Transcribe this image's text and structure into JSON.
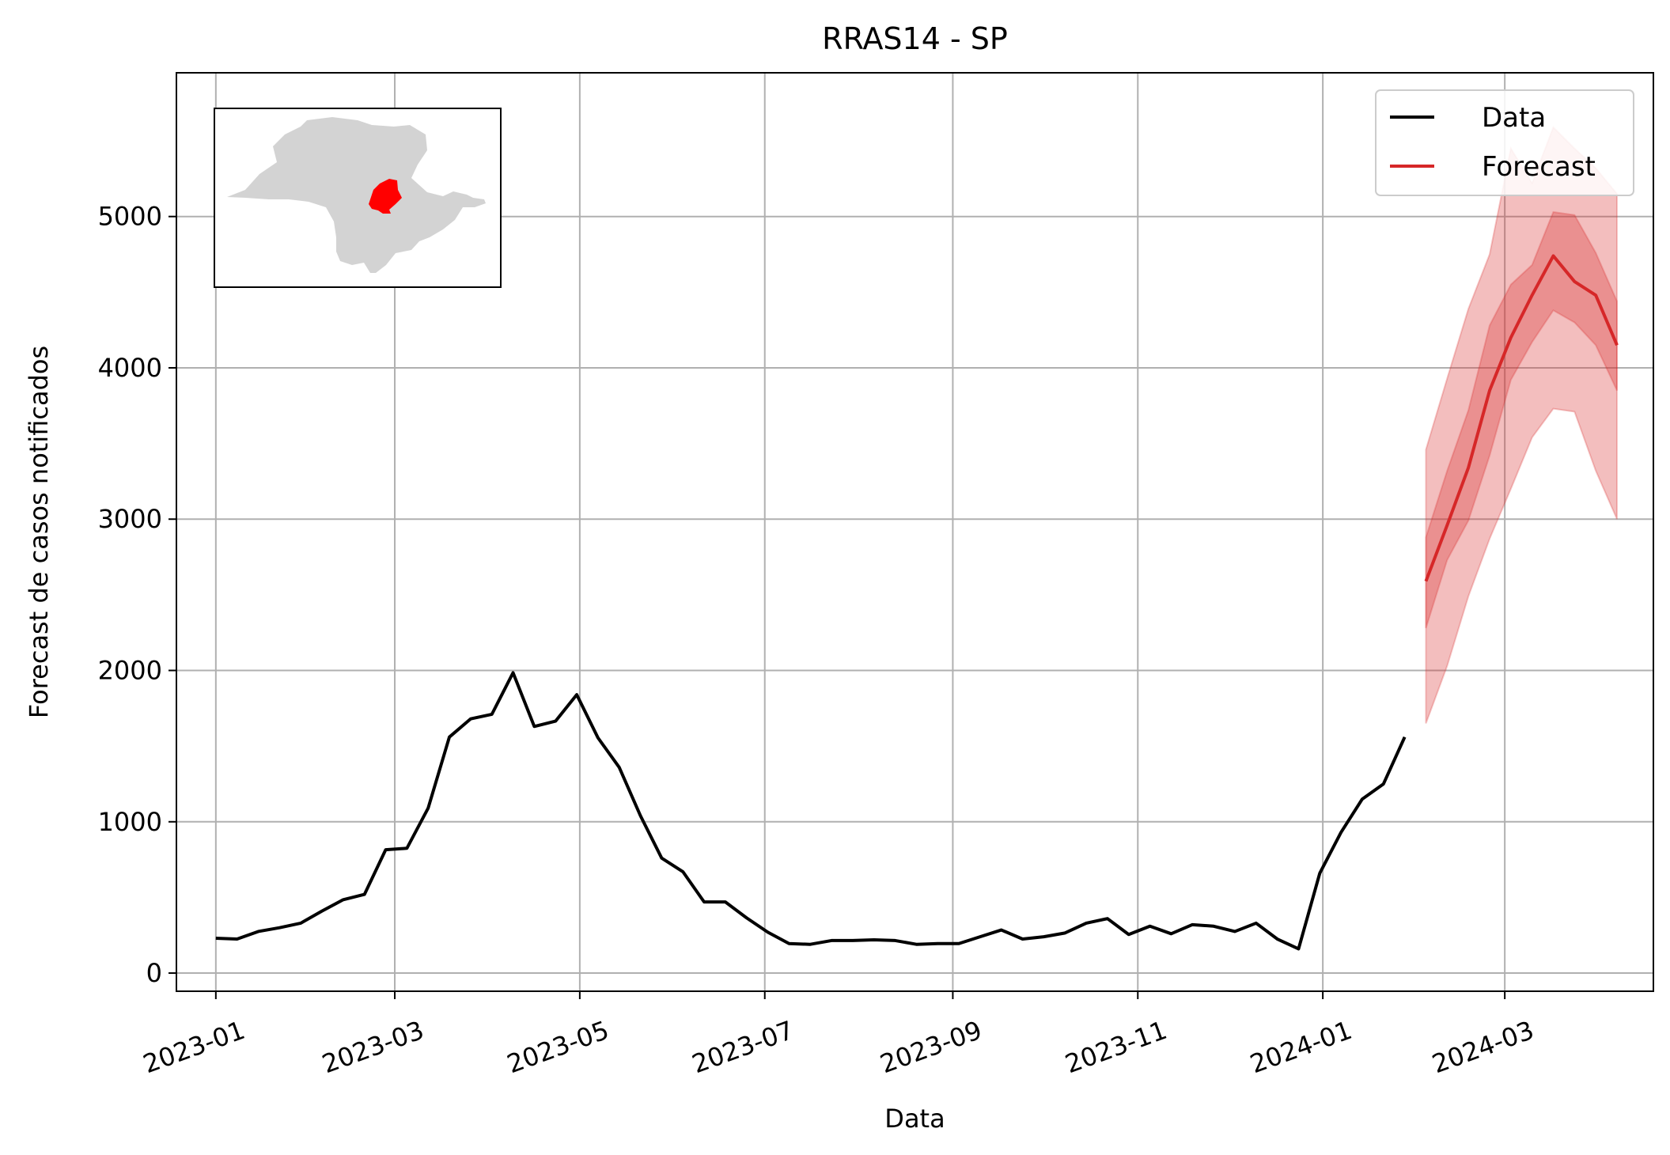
{
  "chart_data": {
    "type": "line",
    "title": "RRAS14 - SP",
    "xlabel": "Data",
    "ylabel": "Forecast de casos notificados",
    "ylim": [
      -120,
      5950
    ],
    "yticks": [
      0,
      1000,
      2000,
      3000,
      4000,
      5000
    ],
    "xlim": [
      "2022-12-19",
      "2024-04-19"
    ],
    "xticks": [
      "2023-01",
      "2023-03",
      "2023-05",
      "2023-07",
      "2023-09",
      "2023-11",
      "2024-01",
      "2024-03"
    ],
    "grid": true,
    "legend_position": "top-right",
    "legend": [
      {
        "label": "Data",
        "color": "#000000"
      },
      {
        "label": "Forecast",
        "color": "#d62728"
      }
    ],
    "series": [
      {
        "name": "Data",
        "color": "#000000",
        "x": [
          "2023-01-01",
          "2023-01-08",
          "2023-01-15",
          "2023-01-22",
          "2023-01-29",
          "2023-02-05",
          "2023-02-12",
          "2023-02-19",
          "2023-02-26",
          "2023-03-05",
          "2023-03-12",
          "2023-03-19",
          "2023-03-26",
          "2023-04-02",
          "2023-04-09",
          "2023-04-16",
          "2023-04-23",
          "2023-04-30",
          "2023-05-07",
          "2023-05-14",
          "2023-05-21",
          "2023-05-28",
          "2023-06-04",
          "2023-06-11",
          "2023-06-18",
          "2023-06-25",
          "2023-07-02",
          "2023-07-09",
          "2023-07-16",
          "2023-07-23",
          "2023-07-30",
          "2023-08-06",
          "2023-08-13",
          "2023-08-20",
          "2023-08-27",
          "2023-09-03",
          "2023-09-10",
          "2023-09-17",
          "2023-09-24",
          "2023-10-01",
          "2023-10-08",
          "2023-10-15",
          "2023-10-22",
          "2023-10-29",
          "2023-11-05",
          "2023-11-12",
          "2023-11-19",
          "2023-11-26",
          "2023-12-03",
          "2023-12-10",
          "2023-12-17",
          "2023-12-24",
          "2023-12-31",
          "2024-01-07",
          "2024-01-14",
          "2024-01-21",
          "2024-01-28"
        ],
        "y": [
          230,
          225,
          275,
          300,
          330,
          410,
          485,
          520,
          815,
          825,
          1090,
          1560,
          1680,
          1710,
          1985,
          1630,
          1665,
          1840,
          1555,
          1360,
          1040,
          760,
          670,
          470,
          470,
          365,
          270,
          195,
          190,
          215,
          215,
          220,
          215,
          190,
          195,
          195,
          240,
          285,
          225,
          240,
          265,
          330,
          360,
          255,
          310,
          260,
          320,
          310,
          275,
          330,
          225,
          160,
          660,
          930,
          1150,
          1250,
          1560
        ]
      },
      {
        "name": "Forecast",
        "color": "#d62728",
        "x": [
          "2024-02-04",
          "2024-02-11",
          "2024-02-18",
          "2024-02-25",
          "2024-03-03",
          "2024-03-10",
          "2024-03-17",
          "2024-03-24",
          "2024-03-31",
          "2024-04-07"
        ],
        "y": [
          2590,
          2960,
          3340,
          3850,
          4200,
          4480,
          4740,
          4570,
          4480,
          4150
        ],
        "ci_50": {
          "lower": [
            2280,
            2730,
            2990,
            3420,
            3920,
            4170,
            4380,
            4300,
            4150,
            3850
          ],
          "upper": [
            2880,
            3320,
            3720,
            4280,
            4550,
            4680,
            5030,
            5010,
            4760,
            4440
          ]
        },
        "ci_90": {
          "lower": [
            1650,
            2030,
            2490,
            2870,
            3200,
            3540,
            3730,
            3710,
            3320,
            3000
          ],
          "upper": [
            3460,
            3930,
            4390,
            4750,
            5450,
            5220,
            5590,
            5450,
            5320,
            5150
          ]
        }
      }
    ],
    "inset_map": {
      "region_highlight_color": "#ff0000",
      "base_color": "#d3d3d3"
    }
  }
}
